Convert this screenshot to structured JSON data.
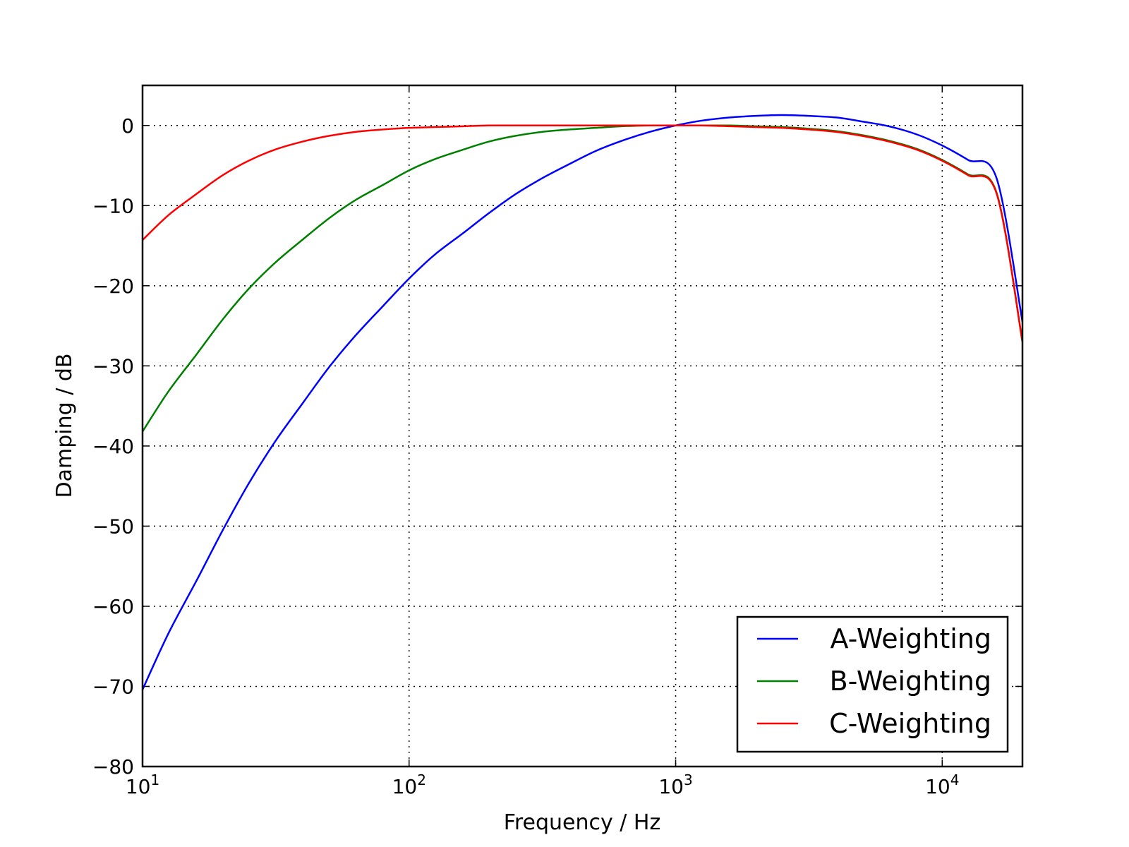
{
  "chart_data": {
    "type": "line",
    "title": "",
    "xlabel": "Frequency / Hz",
    "ylabel": "Damping / dB",
    "xscale": "log",
    "xlim": [
      10,
      20000
    ],
    "ylim": [
      -80,
      5
    ],
    "grid": true,
    "legend_position": "lower-right",
    "x_ticks": [
      {
        "value": 10,
        "base": "10",
        "exponent": "1"
      },
      {
        "value": 100,
        "base": "10",
        "exponent": "2"
      },
      {
        "value": 1000,
        "base": "10",
        "exponent": "3"
      },
      {
        "value": 10000,
        "base": "10",
        "exponent": "4"
      }
    ],
    "y_ticks": [
      {
        "value": 0,
        "label": "0"
      },
      {
        "value": -10,
        "label": "−10"
      },
      {
        "value": -20,
        "label": "−20"
      },
      {
        "value": -30,
        "label": "−30"
      },
      {
        "value": -40,
        "label": "−40"
      },
      {
        "value": -50,
        "label": "−50"
      },
      {
        "value": -60,
        "label": "−60"
      },
      {
        "value": -70,
        "label": "−70"
      },
      {
        "value": -80,
        "label": "−80"
      }
    ],
    "x": [
      10,
      12.5,
      16,
      20,
      25,
      31.5,
      40,
      50,
      63,
      80,
      100,
      125,
      160,
      200,
      250,
      315,
      400,
      500,
      630,
      800,
      1000,
      1250,
      1600,
      2000,
      2500,
      3150,
      4000,
      5000,
      6300,
      8000,
      10000,
      12500,
      16000,
      20000
    ],
    "series": [
      {
        "name": "A-Weighting",
        "color": "#0000ff",
        "values": [
          -70.4,
          -63.4,
          -56.7,
          -50.5,
          -44.7,
          -39.4,
          -34.6,
          -30.2,
          -26.2,
          -22.5,
          -19.1,
          -16.1,
          -13.4,
          -10.9,
          -8.6,
          -6.6,
          -4.8,
          -3.2,
          -1.9,
          -0.8,
          0.0,
          0.6,
          1.0,
          1.2,
          1.3,
          1.2,
          1.0,
          0.5,
          -0.1,
          -1.1,
          -2.5,
          -4.3,
          -6.6,
          -24.5
        ]
      },
      {
        "name": "B-Weighting",
        "color": "#008000",
        "values": [
          -38.2,
          -33.2,
          -28.5,
          -24.2,
          -20.4,
          -17.1,
          -14.2,
          -11.6,
          -9.3,
          -7.4,
          -5.6,
          -4.2,
          -3.0,
          -2.0,
          -1.3,
          -0.8,
          -0.5,
          -0.3,
          -0.1,
          0.0,
          0.0,
          0.0,
          0.0,
          -0.1,
          -0.2,
          -0.4,
          -0.7,
          -1.2,
          -1.9,
          -2.9,
          -4.3,
          -6.1,
          -8.4,
          -27.0
        ]
      },
      {
        "name": "C-Weighting",
        "color": "#ff0000",
        "values": [
          -14.3,
          -11.2,
          -8.5,
          -6.2,
          -4.4,
          -3.0,
          -2.0,
          -1.3,
          -0.8,
          -0.5,
          -0.3,
          -0.2,
          -0.1,
          0.0,
          0.0,
          0.0,
          0.0,
          0.0,
          0.0,
          0.0,
          0.0,
          0.0,
          -0.1,
          -0.2,
          -0.3,
          -0.5,
          -0.8,
          -1.3,
          -2.0,
          -3.0,
          -4.4,
          -6.2,
          -8.5,
          -27.0
        ]
      }
    ]
  }
}
